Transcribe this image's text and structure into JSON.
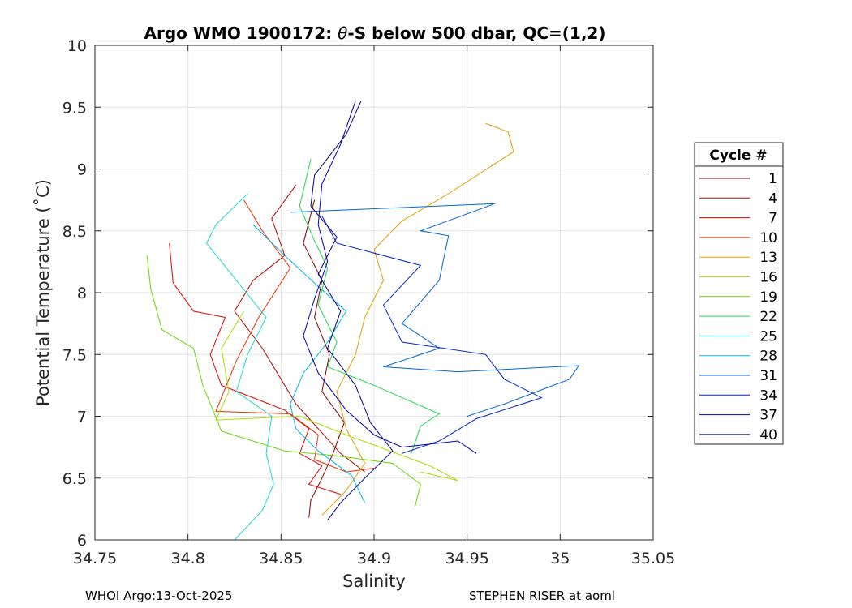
{
  "chart_data": {
    "type": "line",
    "title": "Argo WMO 1900172: θ-S below 500 dbar,  QC=(1,2)",
    "title_prefix": "Argo WMO 1900172: ",
    "title_theta": "θ",
    "title_suffix": "-S below 500 dbar,  QC=(1,2)",
    "xlabel": "Salinity",
    "ylabel": "Potential Temperature (˚C)",
    "xlim": [
      34.75,
      35.05
    ],
    "ylim": [
      6,
      10
    ],
    "xticks": [
      34.75,
      34.8,
      34.85,
      34.9,
      34.95,
      35,
      35.05
    ],
    "xtick_labels": [
      "34.75",
      "34.8",
      "34.85",
      "34.9",
      "34.95",
      "35",
      "35.05"
    ],
    "yticks": [
      6,
      6.5,
      7,
      7.5,
      8,
      8.5,
      9,
      9.5,
      10
    ],
    "ytick_labels": [
      "6",
      "6.5",
      "7",
      "7.5",
      "8",
      "8.5",
      "9",
      "9.5",
      "10"
    ],
    "grid": true,
    "legend_title": "Cycle #",
    "legend_position": "right",
    "series": [
      {
        "name": "1",
        "color": "#800000",
        "points": [
          [
            34.868,
            8.75
          ],
          [
            34.862,
            8.4
          ],
          [
            34.872,
            8.1
          ],
          [
            34.868,
            7.8
          ],
          [
            34.876,
            7.5
          ],
          [
            34.872,
            7.2
          ],
          [
            34.884,
            6.95
          ],
          [
            34.878,
            6.7
          ],
          [
            34.872,
            6.5
          ],
          [
            34.866,
            6.32
          ],
          [
            34.865,
            6.18
          ]
        ]
      },
      {
        "name": "4",
        "color": "#b30000",
        "points": [
          [
            34.858,
            8.87
          ],
          [
            34.845,
            8.6
          ],
          [
            34.852,
            8.3
          ],
          [
            34.835,
            8.1
          ],
          [
            34.825,
            7.85
          ],
          [
            34.84,
            7.55
          ],
          [
            34.85,
            7.3
          ],
          [
            34.858,
            7.1
          ],
          [
            34.87,
            6.9
          ],
          [
            34.882,
            6.7
          ],
          [
            34.895,
            6.55
          ]
        ]
      },
      {
        "name": "7",
        "color": "#e60000",
        "points": [
          [
            34.79,
            8.4
          ],
          [
            34.792,
            8.08
          ],
          [
            34.803,
            7.85
          ],
          [
            34.82,
            7.8
          ],
          [
            34.812,
            7.5
          ],
          [
            34.818,
            7.25
          ],
          [
            34.835,
            7.15
          ],
          [
            34.852,
            7.05
          ],
          [
            34.865,
            6.9
          ],
          [
            34.86,
            6.7
          ],
          [
            34.872,
            6.6
          ],
          [
            34.865,
            6.45
          ],
          [
            34.882,
            6.37
          ]
        ]
      },
      {
        "name": "10",
        "color": "#e63300",
        "points": [
          [
            34.83,
            8.75
          ],
          [
            34.84,
            8.5
          ],
          [
            34.855,
            8.2
          ],
          [
            34.838,
            7.8
          ],
          [
            34.826,
            7.45
          ],
          [
            34.815,
            7.04
          ],
          [
            34.855,
            7.02
          ],
          [
            34.87,
            6.85
          ],
          [
            34.868,
            6.65
          ],
          [
            34.885,
            6.55
          ],
          [
            34.9,
            6.58
          ]
        ]
      },
      {
        "name": "13",
        "color": "#e6a000",
        "points": [
          [
            34.96,
            9.37
          ],
          [
            34.972,
            9.3
          ],
          [
            34.975,
            9.14
          ],
          [
            34.94,
            8.8
          ],
          [
            34.915,
            8.58
          ],
          [
            34.9,
            8.35
          ],
          [
            34.905,
            8.1
          ],
          [
            34.895,
            7.8
          ],
          [
            34.89,
            7.5
          ],
          [
            34.88,
            7.2
          ],
          [
            34.885,
            6.9
          ],
          [
            34.895,
            6.62
          ],
          [
            34.885,
            6.4
          ],
          [
            34.872,
            6.2
          ]
        ]
      },
      {
        "name": "16",
        "color": "#b3d900",
        "points": [
          [
            34.83,
            7.85
          ],
          [
            34.818,
            7.55
          ],
          [
            34.822,
            7.2
          ],
          [
            34.815,
            6.97
          ],
          [
            34.86,
            7.0
          ],
          [
            34.885,
            6.85
          ],
          [
            34.93,
            6.6
          ],
          [
            34.945,
            6.48
          ],
          [
            34.925,
            6.55
          ]
        ]
      },
      {
        "name": "19",
        "color": "#66d900",
        "points": [
          [
            34.778,
            8.3
          ],
          [
            34.78,
            8.03
          ],
          [
            34.786,
            7.7
          ],
          [
            34.803,
            7.55
          ],
          [
            34.808,
            7.25
          ],
          [
            34.818,
            6.88
          ],
          [
            34.852,
            6.72
          ],
          [
            34.88,
            6.68
          ],
          [
            34.91,
            6.62
          ],
          [
            34.925,
            6.45
          ],
          [
            34.922,
            6.27
          ]
        ]
      },
      {
        "name": "22",
        "color": "#1ad94d",
        "points": [
          [
            34.866,
            9.08
          ],
          [
            34.86,
            8.7
          ],
          [
            34.868,
            8.42
          ],
          [
            34.875,
            8.2
          ],
          [
            34.87,
            7.9
          ],
          [
            34.88,
            7.6
          ],
          [
            34.875,
            7.4
          ],
          [
            34.9,
            7.25
          ],
          [
            34.935,
            7.02
          ],
          [
            34.925,
            6.92
          ],
          [
            34.92,
            6.7
          ]
        ]
      },
      {
        "name": "25",
        "color": "#1ad9d9",
        "points": [
          [
            34.832,
            8.8
          ],
          [
            34.815,
            8.55
          ],
          [
            34.81,
            8.4
          ],
          [
            34.826,
            8.1
          ],
          [
            34.842,
            7.8
          ],
          [
            34.832,
            7.5
          ],
          [
            34.826,
            7.2
          ],
          [
            34.845,
            7.0
          ],
          [
            34.842,
            6.7
          ],
          [
            34.846,
            6.45
          ],
          [
            34.84,
            6.24
          ],
          [
            34.825,
            6.0
          ]
        ]
      },
      {
        "name": "28",
        "color": "#00b3e6",
        "points": [
          [
            34.835,
            8.55
          ],
          [
            34.852,
            8.3
          ],
          [
            34.87,
            8.05
          ],
          [
            34.885,
            7.85
          ],
          [
            34.875,
            7.6
          ],
          [
            34.862,
            7.35
          ],
          [
            34.855,
            7.1
          ],
          [
            34.858,
            6.9
          ],
          [
            34.87,
            6.72
          ],
          [
            34.888,
            6.52
          ],
          [
            34.895,
            6.3
          ]
        ]
      },
      {
        "name": "31",
        "color": "#0066d9",
        "points": [
          [
            34.855,
            8.65
          ],
          [
            34.965,
            8.72
          ],
          [
            34.925,
            8.5
          ],
          [
            34.94,
            8.46
          ],
          [
            34.935,
            8.1
          ],
          [
            34.915,
            7.75
          ],
          [
            34.935,
            7.55
          ],
          [
            34.905,
            7.4
          ],
          [
            34.945,
            7.36
          ],
          [
            35.01,
            7.41
          ],
          [
            35.005,
            7.3
          ],
          [
            34.97,
            7.1
          ],
          [
            34.95,
            7.0
          ]
        ]
      },
      {
        "name": "34",
        "color": "#0022cc",
        "points": [
          [
            34.872,
            8.62
          ],
          [
            34.88,
            8.4
          ],
          [
            34.925,
            8.22
          ],
          [
            34.905,
            7.9
          ],
          [
            34.915,
            7.6
          ],
          [
            34.96,
            7.5
          ],
          [
            34.97,
            7.3
          ],
          [
            34.99,
            7.15
          ],
          [
            34.955,
            6.98
          ],
          [
            34.935,
            6.8
          ],
          [
            34.915,
            6.7
          ]
        ]
      },
      {
        "name": "37",
        "color": "#0000b3",
        "points": [
          [
            34.89,
            9.55
          ],
          [
            34.882,
            9.2
          ],
          [
            34.872,
            8.88
          ],
          [
            34.87,
            8.55
          ],
          [
            34.875,
            8.25
          ],
          [
            34.868,
            7.95
          ],
          [
            34.862,
            7.65
          ],
          [
            34.87,
            7.35
          ],
          [
            34.885,
            7.05
          ],
          [
            34.9,
            6.85
          ],
          [
            34.915,
            6.75
          ],
          [
            34.945,
            6.8
          ],
          [
            34.955,
            6.7
          ]
        ]
      },
      {
        "name": "40",
        "color": "#000080",
        "points": [
          [
            34.893,
            9.55
          ],
          [
            34.885,
            9.28
          ],
          [
            34.868,
            8.95
          ],
          [
            34.866,
            8.7
          ],
          [
            34.88,
            8.45
          ],
          [
            34.87,
            8.15
          ],
          [
            34.882,
            7.85
          ],
          [
            34.875,
            7.55
          ],
          [
            34.89,
            7.25
          ],
          [
            34.898,
            6.95
          ],
          [
            34.91,
            6.72
          ],
          [
            34.895,
            6.5
          ],
          [
            34.882,
            6.3
          ],
          [
            34.875,
            6.16
          ]
        ]
      }
    ]
  },
  "footer": {
    "left": "WHOI Argo:13-Oct-2025",
    "right": "STEPHEN RISER at aoml"
  }
}
